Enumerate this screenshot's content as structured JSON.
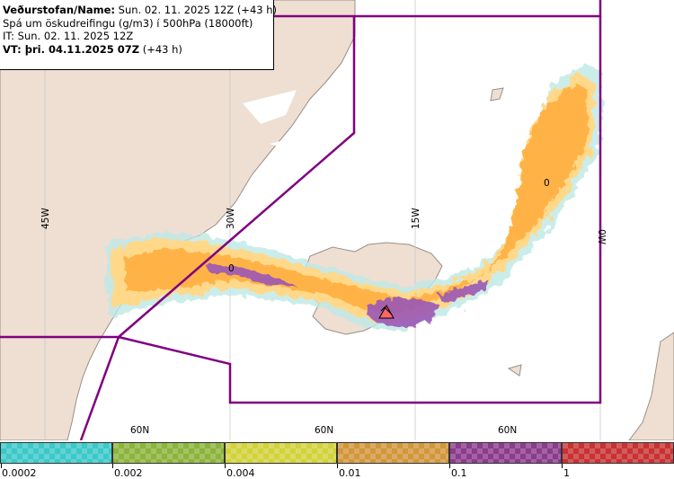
{
  "header": {
    "line1_label": "Veðurstofan/Name:",
    "line1_value": " Sun. 02. 11. 2025 12Z (+43 h)",
    "line2": "Spá um öskudreifingu (g/m3) í 500hPa (18000ft)",
    "line3": "IT: Sun. 02. 11. 2025 12Z",
    "line4_label": "VT:",
    "line4_bold": " þri. 04.11.2025 07Z",
    "line4_value": " (+43 h)"
  },
  "map": {
    "longitude_labels": [
      "45W",
      "30W",
      "15W",
      "0W"
    ],
    "latitude_labels": [
      "60N",
      "60N",
      "60N"
    ],
    "contour_labels": [
      "0",
      "0"
    ],
    "colors": {
      "land": "#eedfd2",
      "sea": "#ffffff",
      "boundary": "#800080",
      "grid": "#c8c8c8",
      "ash_low": "#ffd88a",
      "ash_mid": "#ffb347",
      "ash_high": "#9b59b6",
      "ash_fringe": "#bfe9e6",
      "volcano": "#ff6666"
    }
  },
  "legend": {
    "ticks": [
      "0.0002",
      "0.002",
      "0.004",
      "0.01",
      "0.1",
      "1"
    ],
    "colors": [
      "#3cc8c8",
      "#8cb43c",
      "#d2d23c",
      "#d2963c",
      "#8c3c8c",
      "#c83232"
    ]
  }
}
